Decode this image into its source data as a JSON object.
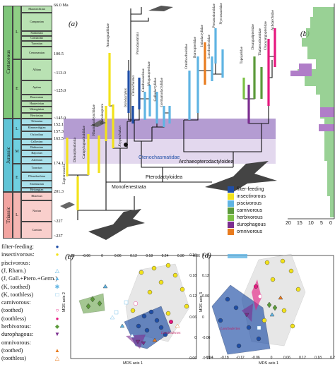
{
  "colors": {
    "filter_feeding": "#1f4ea6",
    "insectivorous": "#f2e21b",
    "piscivorous": "#5fb4e3",
    "carnivorous": "#5b9a3a",
    "herbivorous": "#7bc044",
    "durophagous": "#7b2d8f",
    "omnivorous": "#e87b1e",
    "pink": "#e6187f",
    "cretaceous_bg": "#7fc67a",
    "jurassic_bg": "#5fc4d6",
    "triassic_bg": "#f2a4a0",
    "band_purple": "#b49cd2",
    "band_light": "#e3d8ee"
  },
  "panel_a": {
    "letter": "(a)",
    "top_age": "66.0 Ma",
    "periods": [
      "Cretaceous",
      "Jurassic",
      "Triassic"
    ],
    "epochs": {
      "cretaceous": [
        "L",
        "E"
      ],
      "jurassic": [
        "L",
        "M",
        "E"
      ],
      "triassic": [
        "L"
      ]
    },
    "stages": [
      "Maastrichtian",
      "Campanian",
      "Santonian",
      "Coniacian",
      "Turonian",
      "Cenomanian",
      "Albian",
      "Aptian",
      "Barremian",
      "Hauterivian",
      "Valanginian",
      "Berriasian",
      "Tithonian",
      "Kimmeridgian",
      "Oxfordian",
      "Callovian",
      "Bathonian",
      "Bajocian",
      "Aalenian",
      "Toarcian",
      "Pliensbachian",
      "Sinemurian",
      "Hettangian",
      "Rhaetian",
      "Norian",
      "Carnian"
    ],
    "ages": [
      "100.5",
      "~113.0",
      "~125.0",
      "~145.0",
      "152.1",
      "157.3",
      "163.5",
      "174.1",
      "201.3",
      "~227",
      "~237"
    ],
    "taxa": [
      "Eopterosauria",
      "Dimorphodontia",
      "Campylognathoididae",
      "Rhamphorhynchidae",
      "Darwinoptera",
      "Anurognathidae",
      "Kryptodrakon",
      "Istiodactylus",
      "Ctenochasma",
      "Pterodaustriini",
      "Gnathosaurinae",
      "Moganopterinae",
      "Gallodactylidae",
      "Germanodactylidae",
      "Ornithocheiridae",
      "Boreopteridae",
      "Istiodactylidae",
      "Lonchodectidae",
      "Pteranodontidae",
      "Nyctosauridae",
      "Tapejaridae",
      "Dsungaripteridae",
      "Thalassodromidae",
      "Chaoyangopteridae",
      "Azhdarchidae"
    ],
    "clades": [
      "Ctenochasmatidae",
      "Archaeopterodactyloidea",
      "Pterodactyloidea",
      "Monofenestrata"
    ],
    "legend": [
      {
        "label": "filter-feeding",
        "color": "#1f4ea6"
      },
      {
        "label": "insectivorous",
        "color": "#f2e21b"
      },
      {
        "label": "piscivorous",
        "color": "#5fb4e3"
      },
      {
        "label": "carnivorous",
        "color": "#5b9a3a"
      },
      {
        "label": "herbivorous",
        "color": "#7bc044"
      },
      {
        "label": "durophagous",
        "color": "#7b2d8f"
      },
      {
        "label": "omnivorous",
        "color": "#e87b1e"
      }
    ]
  },
  "panel_b": {
    "letter": "(b)",
    "ticks": [
      "20",
      "15",
      "10",
      "5",
      "0"
    ]
  },
  "left_legend": [
    {
      "label": "filter-feeding:",
      "marker": "filled-circle",
      "color": "#1f4ea6"
    },
    {
      "label": "insectivorous:",
      "marker": "filled-circle",
      "color": "#f2e21b"
    },
    {
      "label": "piscivorous:",
      "marker": "",
      "color": ""
    },
    {
      "label": "(J, Rham.)",
      "marker": "triangle-open",
      "color": "#5fb4e3"
    },
    {
      "label": "(J, Gall.+Ptero.+Germ.)",
      "marker": "triangle-filled",
      "color": "#5fb4e3"
    },
    {
      "label": "(K, toothed)",
      "marker": "star",
      "color": "#5fb4e3"
    },
    {
      "label": "(K, toothless)",
      "marker": "square-open",
      "color": "#5fb4e3"
    },
    {
      "label": "carnivorous:",
      "marker": "",
      "color": ""
    },
    {
      "label": "(toothed)",
      "marker": "circle-open",
      "color": "#e6187f"
    },
    {
      "label": "(toothless)",
      "marker": "circle-filled",
      "color": "#e6187f"
    },
    {
      "label": "herbivorous:",
      "marker": "diamond",
      "color": "#5b9a3a"
    },
    {
      "label": "durophagous:",
      "marker": "triangle-down",
      "color": "#7b2d8f"
    },
    {
      "label": "omnivorous:",
      "marker": "",
      "color": ""
    },
    {
      "label": "(toothed)",
      "marker": "triangle-filled",
      "color": "#e87b1e"
    },
    {
      "label": "(toothless)",
      "marker": "triangle-open",
      "color": "#e87b1e"
    }
  ],
  "panel_c": {
    "letter": "(c)",
    "xlabel": "MDS axis 1",
    "ylabel": "MDS axis 2",
    "xticks": [
      "-0.12",
      "-0.06",
      "0",
      "0.06",
      "0.12",
      "0.18",
      "0.24",
      "0.30",
      "0.36"
    ],
    "yticks": [
      "0.24",
      "0.18",
      "0.12",
      "0.06",
      "0",
      "-0.06"
    ],
    "annotation": "Lonchodectes"
  },
  "panel_d": {
    "letter": "(d)",
    "xlabel": "MDS axis 1",
    "ylabel": "MDS axis 3",
    "xticks": [
      "-0.24",
      "-0.18",
      "-0.12",
      "-0.06",
      "0",
      "0.06",
      "0.12",
      "0.18",
      "0.24"
    ],
    "yticks": [
      "0.18",
      "0.12",
      "0.06",
      "0",
      "-0.06",
      "-0.12"
    ],
    "annotation": "Lonchodectes"
  }
}
